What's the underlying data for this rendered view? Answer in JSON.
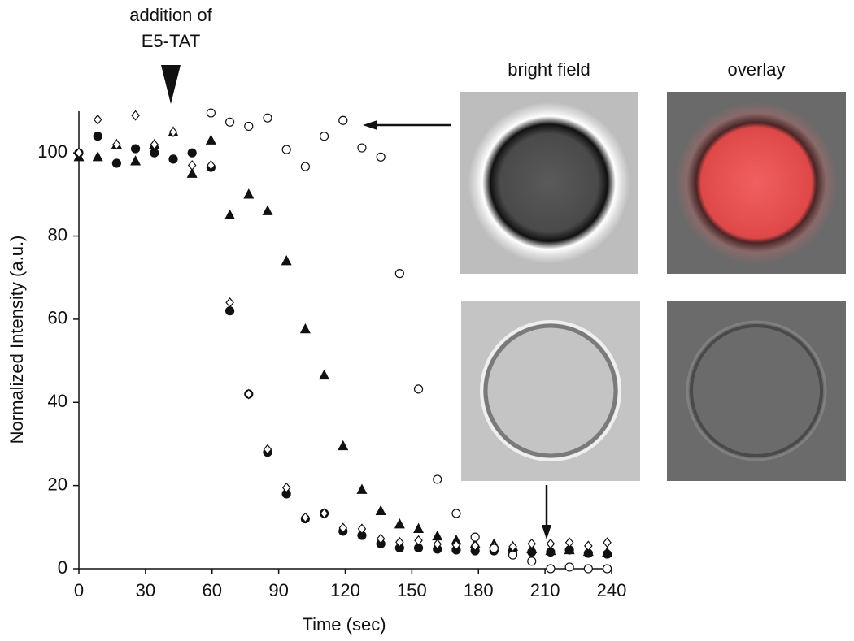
{
  "chart_data": {
    "type": "scatter",
    "annotation": [
      "addition of",
      "E5-TAT"
    ],
    "panel_labels": [
      "bright field",
      "overlay"
    ],
    "xlabel": "Time (sec)",
    "ylabel": "Normalized  Intensity (a.u.)",
    "xlim": [
      0,
      240
    ],
    "xticks": [
      0,
      30,
      60,
      90,
      120,
      150,
      180,
      210,
      240
    ],
    "ylim": [
      0,
      110
    ],
    "yticks": [
      0,
      20,
      40,
      60,
      80,
      100
    ],
    "x": [
      0,
      8.5,
      17,
      25.5,
      34,
      42.5,
      51,
      59.5,
      68,
      76.5,
      85,
      93.5,
      102,
      110.5,
      119,
      127.5,
      136,
      144.5,
      153,
      161.5,
      170,
      178.5,
      187,
      195.5,
      204,
      212.5,
      221,
      229.5,
      238
    ],
    "series": [
      {
        "color": "#111111",
        "marker": "circle",
        "filled": true,
        "values": [
          100,
          104,
          97.5,
          101,
          100,
          98.5,
          100,
          96.5,
          62,
          42,
          28,
          18,
          12,
          13.3,
          9,
          8,
          6,
          5,
          5,
          4.7,
          4.5,
          4.3,
          4.3,
          4,
          4,
          4,
          4.5,
          3.7,
          3.5
        ]
      },
      {
        "color": "#111111",
        "marker": "triangle",
        "filled": true,
        "values": [
          99,
          99,
          102,
          98,
          102,
          105,
          95,
          103,
          85,
          90,
          86,
          74,
          57.6,
          46.5,
          29.5,
          19,
          13.9,
          10.7,
          9.6,
          7.8,
          6.8,
          6,
          5.9,
          5.3,
          4.7,
          4.3,
          4.5,
          4.1,
          3.9
        ]
      },
      {
        "color": "#111111",
        "marker": "diamond",
        "filled": false,
        "values": [
          100,
          108,
          102,
          109,
          102,
          105,
          97,
          97,
          64,
          42,
          28.7,
          19.5,
          12.3,
          13.3,
          9.8,
          9.6,
          7.2,
          6.4,
          6.8,
          5.9,
          5.7,
          5.5,
          5.3,
          5.3,
          6,
          6,
          6.3,
          5.5,
          6.3
        ]
      },
      {
        "color": "#111111",
        "marker": "circle",
        "filled": false,
        "values": [
          null,
          null,
          null,
          null,
          null,
          null,
          null,
          109.6,
          107.4,
          106.4,
          108.4,
          100.8,
          96.7,
          104,
          107.8,
          101.2,
          99,
          71,
          43.2,
          21.5,
          13.3,
          7.6,
          4.9,
          3.3,
          1.8,
          0,
          0.4,
          0,
          0
        ]
      }
    ]
  }
}
